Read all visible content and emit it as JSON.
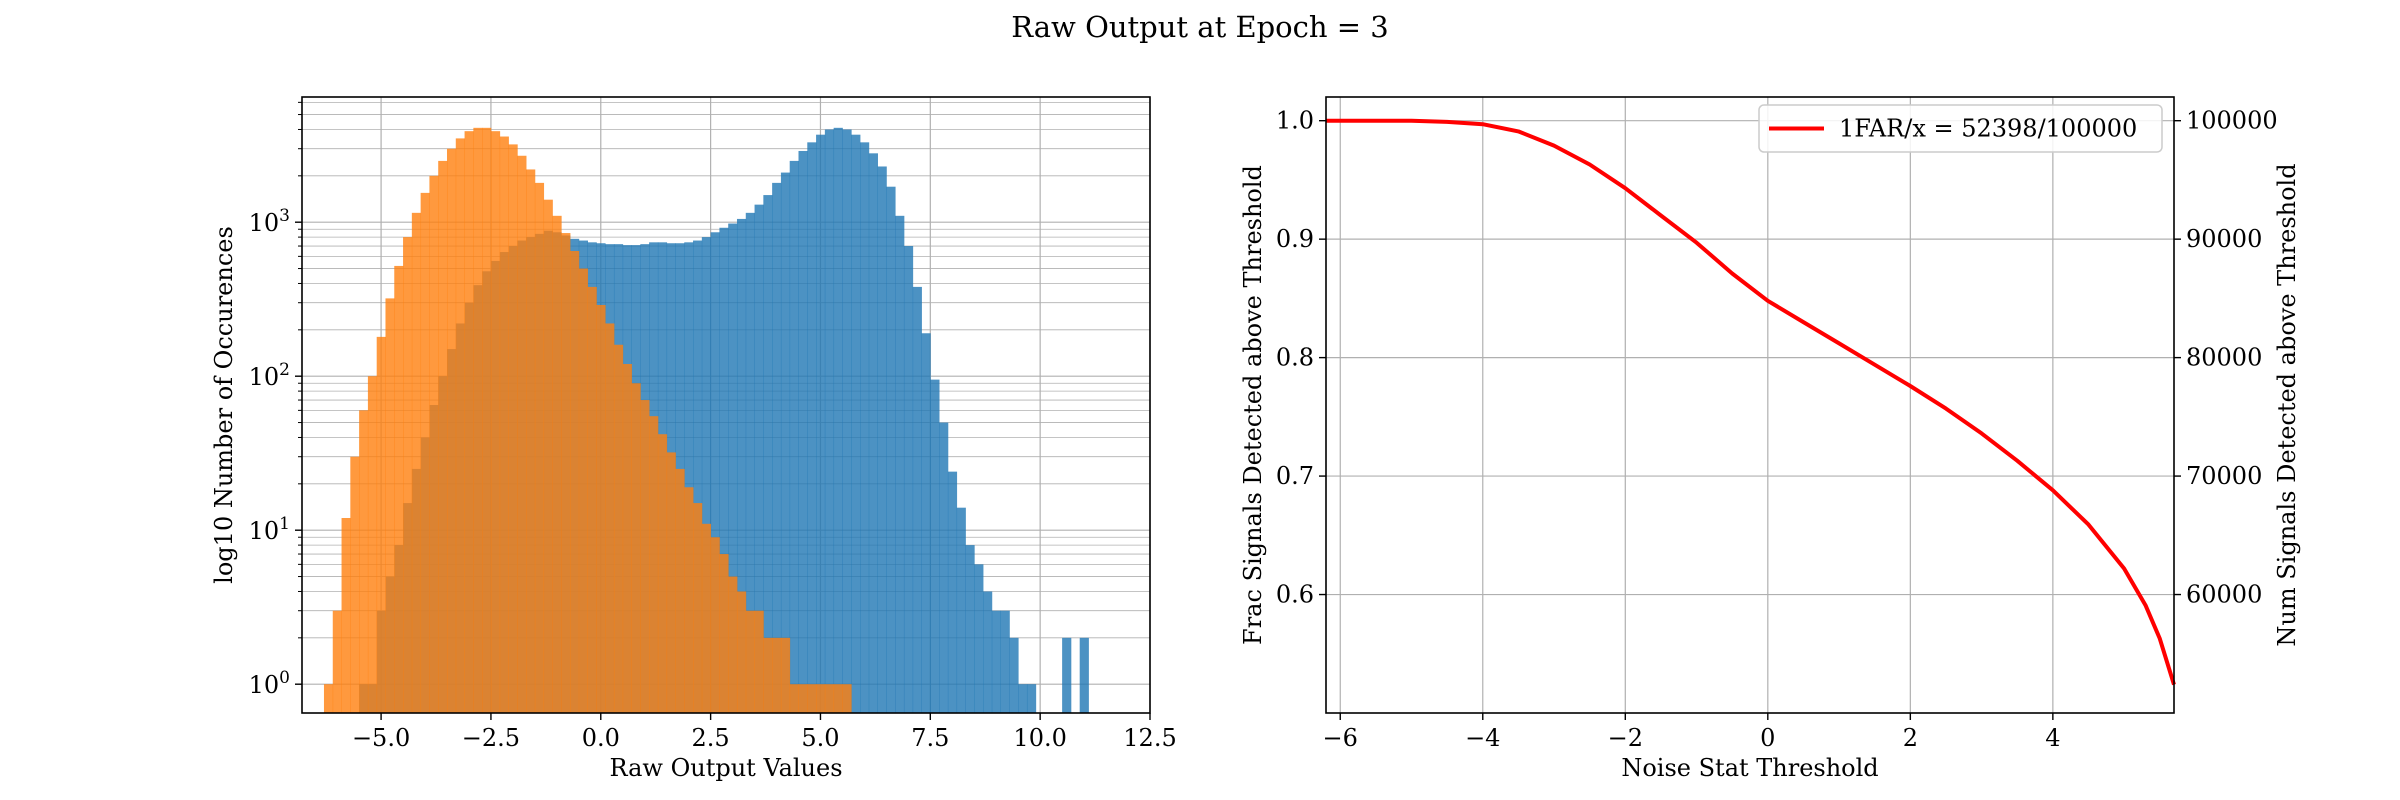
{
  "figure": {
    "suptitle": "Raw Output at Epoch = 3"
  },
  "colors": {
    "signal": "#1f77b4",
    "noise": "#ff7f0e",
    "curve": "#ff0000",
    "grid": "#b0b0b0"
  },
  "chart_data": [
    {
      "type": "bar",
      "subtype": "histogram-overlay",
      "xlabel": "Raw Output Values",
      "ylabel": "log10 Number of Occurences",
      "xlim": [
        -6.8,
        12.5
      ],
      "ylim": [
        0.65,
        6500
      ],
      "yscale": "log",
      "grid": true,
      "xticks": [
        -5.0,
        -2.5,
        0.0,
        2.5,
        5.0,
        7.5,
        10.0,
        12.5
      ],
      "xtick_labels": [
        "−5.0",
        "−2.5",
        "0.0",
        "2.5",
        "5.0",
        "7.5",
        "10.0",
        "12.5"
      ],
      "yticks": [
        1,
        10,
        100,
        1000
      ],
      "ytick_labels": [
        "10^0",
        "10^1",
        "10^2",
        "10^3"
      ],
      "series": [
        {
          "color": "#1f77b4",
          "alpha": 0.8,
          "bin_width": 0.2,
          "x": [
            -5.4,
            -5.2,
            -5.0,
            -4.8,
            -4.6,
            -4.4,
            -4.2,
            -4.0,
            -3.8,
            -3.6,
            -3.4,
            -3.2,
            -3.0,
            -2.8,
            -2.6,
            -2.4,
            -2.2,
            -2.0,
            -1.8,
            -1.6,
            -1.4,
            -1.2,
            -1.0,
            -0.8,
            -0.6,
            -0.4,
            -0.2,
            0.0,
            0.2,
            0.4,
            0.6,
            0.8,
            1.0,
            1.2,
            1.4,
            1.6,
            1.8,
            2.0,
            2.2,
            2.4,
            2.6,
            2.8,
            3.0,
            3.2,
            3.4,
            3.6,
            3.8,
            4.0,
            4.2,
            4.4,
            4.6,
            4.8,
            5.0,
            5.2,
            5.4,
            5.6,
            5.8,
            6.0,
            6.2,
            6.4,
            6.6,
            6.8,
            7.0,
            7.2,
            7.4,
            7.6,
            7.8,
            8.0,
            8.2,
            8.4,
            8.6,
            8.8,
            9.0,
            9.2,
            9.4,
            9.6,
            9.8,
            10.0,
            10.2,
            10.4,
            10.6,
            10.8,
            11.0,
            11.2,
            11.4,
            11.6
          ],
          "values": [
            1,
            1,
            3,
            5,
            8,
            15,
            25,
            40,
            65,
            100,
            150,
            220,
            300,
            390,
            480,
            560,
            640,
            700,
            760,
            800,
            840,
            880,
            860,
            820,
            780,
            760,
            740,
            730,
            720,
            720,
            710,
            710,
            720,
            740,
            740,
            730,
            730,
            740,
            760,
            800,
            860,
            920,
            980,
            1050,
            1150,
            1300,
            1500,
            1800,
            2100,
            2500,
            2900,
            3300,
            3700,
            4000,
            4100,
            4000,
            3700,
            3300,
            2800,
            2300,
            1700,
            1100,
            700,
            380,
            190,
            95,
            50,
            24,
            14,
            8,
            6,
            4,
            3,
            3,
            2,
            1,
            1,
            0,
            0,
            0,
            2,
            0,
            2,
            0,
            0,
            0
          ]
        },
        {
          "color": "#ff7f0e",
          "alpha": 0.8,
          "bin_width": 0.2,
          "x": [
            -6.2,
            -6.0,
            -5.8,
            -5.6,
            -5.4,
            -5.2,
            -5.0,
            -4.8,
            -4.6,
            -4.4,
            -4.2,
            -4.0,
            -3.8,
            -3.6,
            -3.4,
            -3.2,
            -3.0,
            -2.8,
            -2.6,
            -2.4,
            -2.2,
            -2.0,
            -1.8,
            -1.6,
            -1.4,
            -1.2,
            -1.0,
            -0.8,
            -0.6,
            -0.4,
            -0.2,
            0.0,
            0.2,
            0.4,
            0.6,
            0.8,
            1.0,
            1.2,
            1.4,
            1.6,
            1.8,
            2.0,
            2.2,
            2.4,
            2.6,
            2.8,
            3.0,
            3.2,
            3.4,
            3.6,
            3.8,
            4.0,
            4.2,
            4.4,
            4.6,
            4.8,
            5.0,
            5.2,
            5.4,
            5.6
          ],
          "values": [
            1,
            3,
            12,
            30,
            60,
            100,
            180,
            320,
            520,
            800,
            1150,
            1550,
            2000,
            2500,
            3000,
            3500,
            3900,
            4100,
            4100,
            3900,
            3600,
            3200,
            2700,
            2200,
            1800,
            1400,
            1100,
            850,
            650,
            500,
            380,
            290,
            220,
            160,
            120,
            90,
            70,
            55,
            42,
            32,
            25,
            19,
            15,
            11,
            9,
            7,
            5,
            4,
            3,
            3,
            2,
            2,
            2,
            1,
            1,
            1,
            1,
            1,
            1,
            1
          ]
        }
      ]
    },
    {
      "type": "line",
      "xlabel": "Noise Stat Threshold",
      "ylabel": "Frac Signals Detected above Threshold",
      "ylabel_right": "Num Signals Detected above Threshold",
      "xlim": [
        -6.2,
        5.7
      ],
      "ylim": [
        0.5,
        1.02
      ],
      "ylim_right": [
        50000,
        102000
      ],
      "grid": true,
      "legend_position": "top-right",
      "xticks": [
        -6,
        -4,
        -2,
        0,
        2,
        4
      ],
      "xtick_labels": [
        "−6",
        "−4",
        "−2",
        "0",
        "2",
        "4"
      ],
      "yticks": [
        0.6,
        0.7,
        0.8,
        0.9,
        1.0
      ],
      "ytick_labels": [
        "0.6",
        "0.7",
        "0.8",
        "0.9",
        "1.0"
      ],
      "yticks_right": [
        60000,
        70000,
        80000,
        90000,
        100000
      ],
      "ytick_labels_right": [
        "60000",
        "70000",
        "80000",
        "90000",
        "100000"
      ],
      "series": [
        {
          "name": "1FAR/x = 52398/100000",
          "color": "#ff0000",
          "x": [
            -6.2,
            -5.5,
            -5.0,
            -4.5,
            -4.0,
            -3.5,
            -3.0,
            -2.5,
            -2.0,
            -1.5,
            -1.0,
            -0.5,
            0.0,
            0.5,
            1.0,
            1.5,
            2.0,
            2.5,
            3.0,
            3.5,
            4.0,
            4.5,
            5.0,
            5.3,
            5.5,
            5.7
          ],
          "y": [
            1.0,
            1.0,
            1.0,
            0.999,
            0.997,
            0.991,
            0.979,
            0.963,
            0.943,
            0.92,
            0.897,
            0.871,
            0.848,
            0.83,
            0.812,
            0.794,
            0.776,
            0.757,
            0.736,
            0.713,
            0.688,
            0.659,
            0.622,
            0.591,
            0.563,
            0.524
          ]
        }
      ]
    }
  ]
}
